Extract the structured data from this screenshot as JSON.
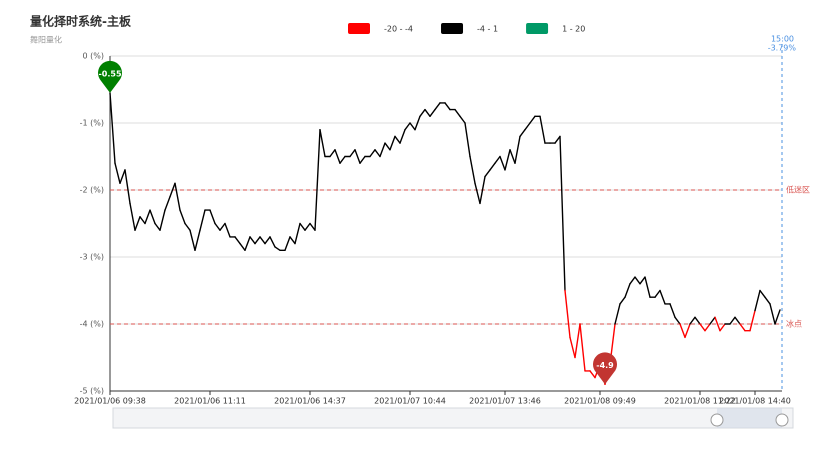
{
  "chart_data": {
    "type": "line",
    "title": "量化择时系统-主板",
    "subtitle": "舞阳量化",
    "categories": [
      "2021/01/06 09:38",
      null,
      null,
      null,
      null,
      null,
      null,
      null,
      null,
      null,
      null,
      null,
      null,
      null,
      null,
      null,
      null,
      null,
      null,
      null,
      "2021/01/06 11:11",
      null,
      null,
      null,
      null,
      null,
      null,
      null,
      null,
      null,
      null,
      null,
      null,
      null,
      null,
      null,
      null,
      null,
      null,
      null,
      "2021/01/06 14:37",
      null,
      null,
      null,
      null,
      null,
      null,
      null,
      null,
      null,
      null,
      null,
      null,
      null,
      null,
      null,
      null,
      null,
      null,
      null,
      "2021/01/07 10:44",
      null,
      null,
      null,
      null,
      null,
      null,
      null,
      null,
      null,
      null,
      null,
      null,
      null,
      null,
      null,
      null,
      null,
      null,
      "2021/01/07 13:46",
      null,
      null,
      null,
      null,
      null,
      null,
      null,
      null,
      null,
      null,
      null,
      null,
      null,
      null,
      null,
      null,
      null,
      null,
      "2021/01/08 09:49",
      null,
      null,
      null,
      null,
      null,
      null,
      null,
      null,
      null,
      null,
      null,
      null,
      null,
      null,
      null,
      null,
      null,
      null,
      null,
      "2021/01/08 11:22",
      null,
      null,
      null,
      null,
      null,
      null,
      null,
      null,
      null,
      null,
      "2021/01/08 14:40",
      null,
      null,
      null,
      null,
      null
    ],
    "values": [
      -0.55,
      -1.6,
      -1.9,
      -1.7,
      -2.2,
      -2.6,
      -2.4,
      -2.5,
      -2.3,
      -2.5,
      -2.6,
      -2.3,
      -2.1,
      -1.9,
      -2.3,
      -2.5,
      -2.6,
      -2.9,
      -2.6,
      -2.3,
      -2.3,
      -2.5,
      -2.6,
      -2.5,
      -2.7,
      -2.7,
      -2.8,
      -2.9,
      -2.7,
      -2.8,
      -2.7,
      -2.8,
      -2.7,
      -2.85,
      -2.9,
      -2.9,
      -2.7,
      -2.8,
      -2.5,
      -2.6,
      -2.5,
      -2.6,
      -1.1,
      -1.5,
      -1.5,
      -1.4,
      -1.6,
      -1.5,
      -1.5,
      -1.4,
      -1.6,
      -1.5,
      -1.5,
      -1.4,
      -1.5,
      -1.3,
      -1.4,
      -1.2,
      -1.3,
      -1.1,
      -1.0,
      -1.1,
      -0.9,
      -0.8,
      -0.9,
      -0.8,
      -0.7,
      -0.7,
      -0.8,
      -0.8,
      -0.9,
      -1.0,
      -1.5,
      -1.9,
      -2.2,
      -1.8,
      -1.7,
      -1.6,
      -1.5,
      -1.7,
      -1.4,
      -1.6,
      -1.2,
      -1.1,
      -1.0,
      -0.9,
      -0.9,
      -1.3,
      -1.3,
      -1.3,
      -1.2,
      -3.5,
      -4.2,
      -4.5,
      -4.0,
      -4.7,
      -4.7,
      -4.8,
      -4.6,
      -4.9,
      -4.6,
      -4.0,
      -3.7,
      -3.6,
      -3.4,
      -3.3,
      -3.4,
      -3.3,
      -3.6,
      -3.6,
      -3.5,
      -3.7,
      -3.7,
      -3.9,
      -4.0,
      -4.2,
      -4.0,
      -3.9,
      -4.0,
      -4.1,
      -4.0,
      -3.9,
      -4.1,
      -4.0,
      -4.0,
      -3.9,
      -4.0,
      -4.1,
      -4.1,
      -3.8,
      -3.5,
      -3.6,
      -3.7,
      -4.0,
      -3.79
    ],
    "pointer_label": "15:00",
    "pointer_value_label": "-3.79%",
    "pieces": [
      {
        "label": "-20 - -4",
        "min": -20,
        "max": -4,
        "color": "#ff0000"
      },
      {
        "label": "-4 - 1",
        "min": -4,
        "max": 1,
        "color": "#000000"
      },
      {
        "label": "1 - 20",
        "min": 1,
        "max": 20,
        "color": "#009966"
      }
    ],
    "mark_lines": [
      {
        "value": -2,
        "label": "低迷区",
        "color": "#d9534f"
      },
      {
        "value": -4,
        "label": "冰点",
        "color": "#d9534f"
      }
    ],
    "mark_points": [
      {
        "value": -0.55,
        "color": "#008000"
      },
      {
        "value": -4.9,
        "color": "#c23531"
      }
    ],
    "ylim": [
      -5,
      0
    ],
    "yticks": [
      {
        "value": 0,
        "label": "0 (%)"
      },
      {
        "value": -1,
        "label": "-1 (%)"
      },
      {
        "value": -2,
        "label": "-2 (%)"
      },
      {
        "value": -3,
        "label": "-3 (%)"
      },
      {
        "value": -4,
        "label": "-4 (%)"
      },
      {
        "value": -5,
        "label": "-5 (%)"
      }
    ],
    "grid": true
  }
}
